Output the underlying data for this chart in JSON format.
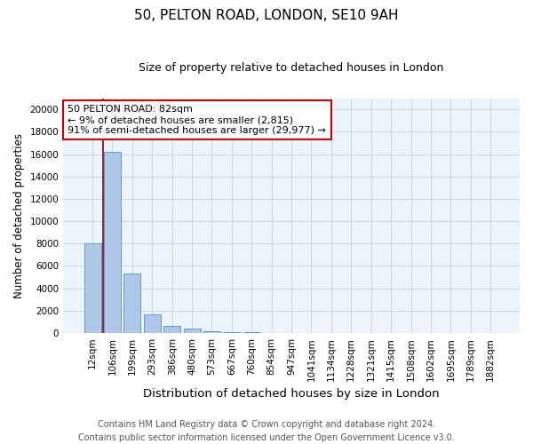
{
  "title": "50, PELTON ROAD, LONDON, SE10 9AH",
  "subtitle": "Size of property relative to detached houses in London",
  "xlabel": "Distribution of detached houses by size in London",
  "ylabel": "Number of detached properties",
  "categories": [
    "12sqm",
    "106sqm",
    "199sqm",
    "293sqm",
    "386sqm",
    "480sqm",
    "573sqm",
    "667sqm",
    "760sqm",
    "854sqm",
    "947sqm",
    "1041sqm",
    "1134sqm",
    "1228sqm",
    "1321sqm",
    "1415sqm",
    "1508sqm",
    "1602sqm",
    "1695sqm",
    "1789sqm",
    "1882sqm"
  ],
  "values": [
    8000,
    16200,
    5300,
    1700,
    600,
    400,
    200,
    100,
    50,
    0,
    0,
    0,
    0,
    0,
    0,
    0,
    0,
    0,
    0,
    0,
    0
  ],
  "bar_color": "#aec6e8",
  "bar_edge_color": "#5b9bd5",
  "vline_x": 0.55,
  "vline_color": "#8b0000",
  "annotation_text": "50 PELTON ROAD: 82sqm\n← 9% of detached houses are smaller (2,815)\n91% of semi-detached houses are larger (29,977) →",
  "annotation_box_color": "white",
  "annotation_box_edge_color": "#cc0000",
  "ylim": [
    0,
    21000
  ],
  "yticks": [
    0,
    2000,
    4000,
    6000,
    8000,
    10000,
    12000,
    14000,
    16000,
    18000,
    20000
  ],
  "grid_color": "#c8d8e8",
  "bg_color": "#eef4fb",
  "footer": "Contains HM Land Registry data © Crown copyright and database right 2024.\nContains public sector information licensed under the Open Government Licence v3.0.",
  "title_fontsize": 11,
  "subtitle_fontsize": 9,
  "xlabel_fontsize": 9.5,
  "ylabel_fontsize": 8.5,
  "tick_fontsize": 7.5,
  "annot_fontsize": 8,
  "footer_fontsize": 7
}
